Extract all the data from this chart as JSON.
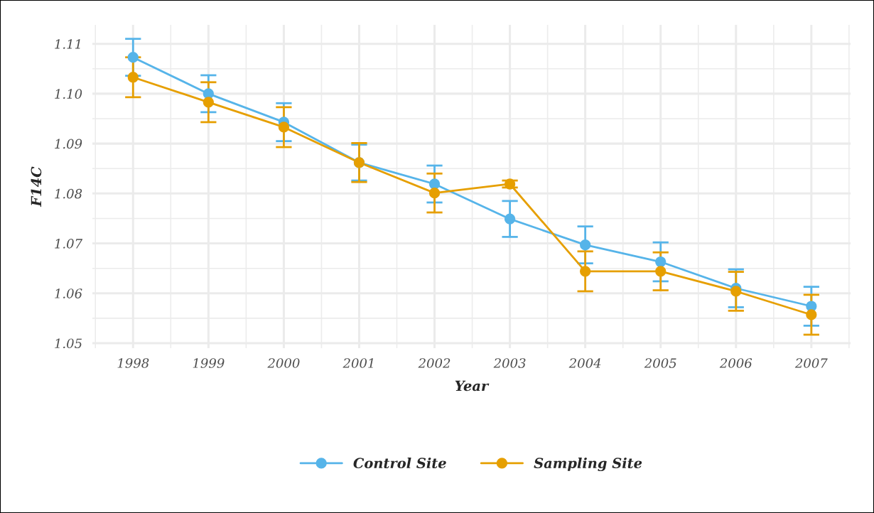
{
  "chart_data": {
    "type": "line",
    "xlabel": "Year",
    "ylabel": "F14C",
    "x": [
      1998,
      1999,
      2000,
      2001,
      2002,
      2003,
      2004,
      2005,
      2006,
      2007
    ],
    "series": [
      {
        "name": "Control Site",
        "color": "#56b4e9",
        "values": [
          1.1073,
          1.1,
          1.0943,
          1.0862,
          1.0819,
          1.0749,
          1.0697,
          1.0663,
          1.061,
          1.0574
        ],
        "errors": [
          0.0037,
          0.0037,
          0.0038,
          0.0036,
          0.0037,
          0.0036,
          0.0037,
          0.0039,
          0.0038,
          0.0039
        ]
      },
      {
        "name": "Sampling Site",
        "color": "#e69f00",
        "values": [
          1.1033,
          1.0983,
          1.0933,
          1.0862,
          1.0801,
          1.0819,
          1.0644,
          1.0644,
          1.0604,
          1.0557
        ],
        "errors": [
          0.004,
          0.004,
          0.004,
          0.0039,
          0.0039,
          0.0007,
          0.004,
          0.0038,
          0.0039,
          0.004
        ]
      }
    ],
    "xlim": [
      1997.46,
      2007.52
    ],
    "xticks": [
      1998,
      1999,
      2000,
      2001,
      2002,
      2003,
      2004,
      2005,
      2006,
      2007
    ],
    "ylim": [
      1.049,
      1.1138
    ],
    "yticks": [
      {
        "value": 1.05,
        "label": "1.05"
      },
      {
        "value": 1.06,
        "label": "1.06"
      },
      {
        "value": 1.07,
        "label": "1.07"
      },
      {
        "value": 1.08,
        "label": "1.08"
      },
      {
        "value": 1.09,
        "label": "1.09"
      },
      {
        "value": 1.1,
        "label": "1.10"
      },
      {
        "value": 1.11,
        "label": "1.11"
      }
    ],
    "grid": true,
    "legend": "bottom",
    "marker": "circle",
    "line_style": "solid"
  }
}
